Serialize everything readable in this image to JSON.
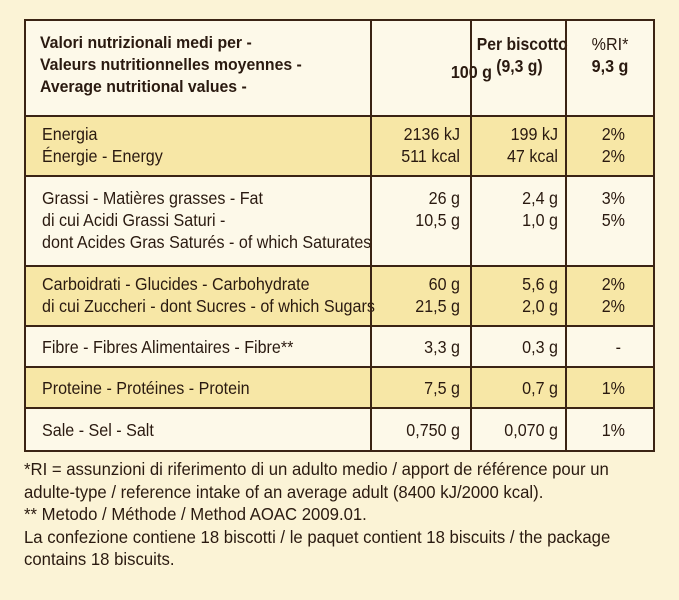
{
  "header": {
    "title_lines": [
      "Valori nutrizionali medi per -",
      "Valeurs nutritionnelles moyennes -",
      "Average nutritional values -"
    ],
    "col1": "100 g",
    "col2_lines": [
      "Per biscotto",
      "(9,3 g)"
    ],
    "col3_lines": [
      "%RI*",
      "9,3 g"
    ]
  },
  "rows": [
    {
      "labels": [
        "Energia",
        "Énergie - Energy"
      ],
      "c1": [
        "2136 kJ",
        "511 kcal"
      ],
      "c2": [
        "199 kJ",
        "47 kcal"
      ],
      "c3": [
        "2%",
        "2%"
      ]
    },
    {
      "labels": [
        "Grassi - Matières grasses - Fat",
        "di cui Acidi Grassi Saturi -",
        "dont Acides Gras Saturés - of which Saturates"
      ],
      "c1": [
        "26 g",
        "10,5 g"
      ],
      "c2": [
        "2,4 g",
        "1,0 g"
      ],
      "c3": [
        "3%",
        "5%"
      ]
    },
    {
      "labels": [
        "Carboidrati - Glucides - Carbohydrate",
        "di cui Zuccheri - dont Sucres - of which Sugars"
      ],
      "c1": [
        "60 g",
        "21,5 g"
      ],
      "c2": [
        "5,6 g",
        "2,0 g"
      ],
      "c3": [
        "2%",
        "2%"
      ]
    },
    {
      "labels": [
        "Fibre - Fibres Alimentaires - Fibre**"
      ],
      "c1": [
        "3,3 g"
      ],
      "c2": [
        "0,3 g"
      ],
      "c3": [
        "-"
      ]
    },
    {
      "labels": [
        "Proteine - Protéines - Protein"
      ],
      "c1": [
        "7,5 g"
      ],
      "c2": [
        "0,7 g"
      ],
      "c3": [
        "1%"
      ]
    },
    {
      "labels": [
        "Sale - Sel - Salt"
      ],
      "c1": [
        "0,750 g"
      ],
      "c2": [
        "0,070 g"
      ],
      "c3": [
        "1%"
      ]
    }
  ],
  "footer": [
    "*RI = assunzioni di riferimento di un adulto medio / apport de référence pour un",
    "adulte-type / reference intake of an average adult (8400 kJ/2000 kcal).",
    "** Metodo / Méthode / Method AOAC 2009.01.",
    "La confezione contiene 18 biscotti / le paquet contient 18 biscuits / the package",
    "contains 18 biscuits."
  ]
}
